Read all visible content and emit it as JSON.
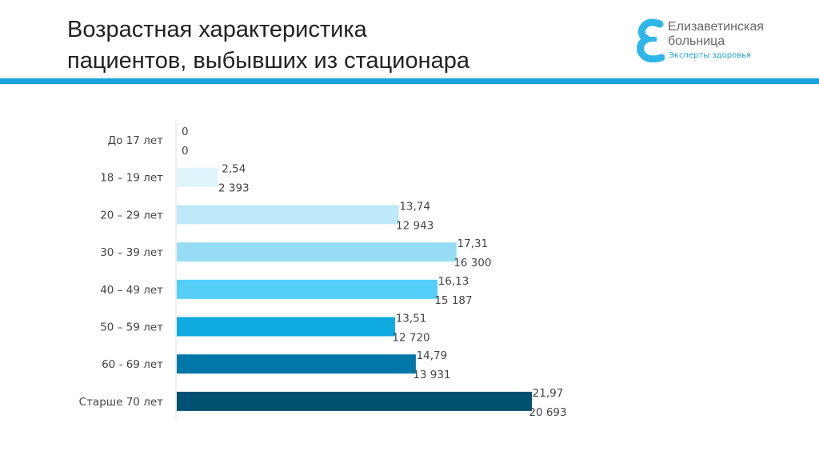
{
  "title": {
    "line1": "Возрастная характеристика",
    "line2": "пациентов, выбывших из стационара"
  },
  "logo": {
    "name_line1": "Елизаветинская",
    "name_line2": "больница",
    "slogan": "Эксперты здоровья"
  },
  "colors": {
    "accent": "#1aa3dc"
  },
  "chart_data": {
    "type": "bar",
    "orientation": "horizontal",
    "categories": [
      "До 17 лет",
      "18 – 19 лет",
      "20 – 29 лет",
      "30 – 39 лет",
      "40 – 49 лет",
      "50 – 59 лет",
      "60 - 69 лет",
      "Старше 70 лет"
    ],
    "series": [
      {
        "values": [
          0,
          2.54,
          13.74,
          17.31,
          16.13,
          13.51,
          14.79,
          21.97
        ],
        "labels": [
          "0",
          "2,54",
          "13,74",
          "17,31",
          "16,13",
          "13,51",
          "14,79",
          "21,97"
        ]
      },
      {
        "values": [
          0,
          2393,
          12943,
          16300,
          15187,
          12720,
          13931,
          20693
        ],
        "labels": [
          "0",
          "2 393",
          "12 943",
          "16 300",
          "15 187",
          "12 720",
          "13 931",
          "20 693"
        ]
      }
    ],
    "bar_colors": [
      "#e6f6fc",
      "#dff3fb",
      "#bde9f8",
      "#97dcf5",
      "#55cef8",
      "#0fabe0",
      "#0077a8",
      "#005172"
    ],
    "grid": false
  }
}
